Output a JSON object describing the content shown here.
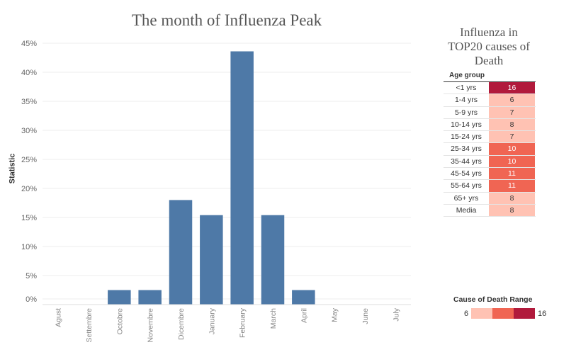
{
  "chart_data": {
    "type": "bar",
    "title": "The month of Influenza Peak",
    "ylabel": "Statistic",
    "xlabel": "",
    "categories": [
      "Agust",
      "Settembre",
      "Octobre",
      "Novembre",
      "Dicembre",
      "January",
      "February",
      "March",
      "April",
      "May",
      "June",
      "July"
    ],
    "values": [
      0,
      0,
      2.5,
      2.5,
      18,
      15.4,
      43.6,
      15.4,
      2.5,
      0,
      0,
      0
    ],
    "ylim": [
      0,
      45
    ],
    "yticks": [
      "0%",
      "5%",
      "10%",
      "15%",
      "20%",
      "25%",
      "30%",
      "35%",
      "40%",
      "45%"
    ],
    "bar_color": "#4e79a7",
    "grid": "horizontal"
  },
  "table": {
    "title_lines": [
      "Influenza in",
      "TOP20 causes of",
      "Death"
    ],
    "header": "Age group",
    "rows": [
      {
        "label": "<1 yrs",
        "value": "16",
        "color": "#b11a3c",
        "text_color": "#ffffff"
      },
      {
        "label": "1-4 yrs",
        "value": "6",
        "color": "#ffc2b3",
        "text_color": "#333333"
      },
      {
        "label": "5-9 yrs",
        "value": "7",
        "color": "#ffc2b3",
        "text_color": "#333333"
      },
      {
        "label": "10-14 yrs",
        "value": "8",
        "color": "#ffc2b3",
        "text_color": "#333333"
      },
      {
        "label": "15-24 yrs",
        "value": "7",
        "color": "#ffc2b3",
        "text_color": "#333333"
      },
      {
        "label": "25-34 yrs",
        "value": "10",
        "color": "#f06553",
        "text_color": "#ffffff"
      },
      {
        "label": "35-44 yrs",
        "value": "10",
        "color": "#f06553",
        "text_color": "#ffffff"
      },
      {
        "label": "45-54 yrs",
        "value": "11",
        "color": "#f06553",
        "text_color": "#ffffff"
      },
      {
        "label": "55-64 yrs",
        "value": "11",
        "color": "#f06553",
        "text_color": "#ffffff"
      },
      {
        "label": "65+ yrs",
        "value": "8",
        "color": "#ffc2b3",
        "text_color": "#333333"
      },
      {
        "label": "Media",
        "value": "8",
        "color": "#ffc2b3",
        "text_color": "#333333"
      }
    ]
  },
  "legend": {
    "title": "Cause of Death Range",
    "min": "6",
    "max": "16",
    "colors": [
      "#ffc2b3",
      "#f06553",
      "#b11a3c"
    ]
  }
}
